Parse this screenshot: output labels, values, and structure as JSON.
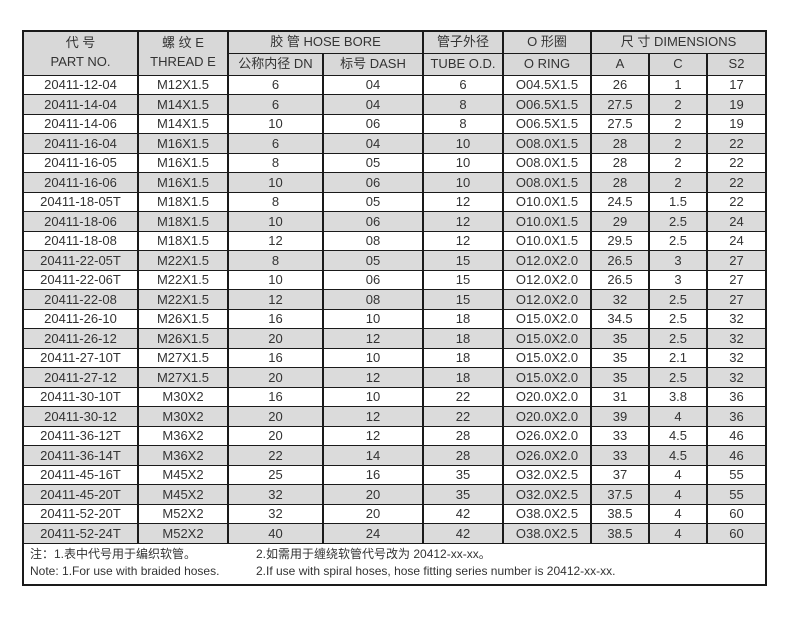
{
  "colors": {
    "header_bg": "#d8d8d8",
    "stripe_bg": "#dbdbdb",
    "border": "#1a1a1a",
    "text": "#333333"
  },
  "table": {
    "header": {
      "part_no_zh": "代 号",
      "part_no_en": "PART NO.",
      "thread_zh": "螺 纹 E",
      "thread_en": "THREAD E",
      "hose_bore": "胶 管 HOSE BORE",
      "dn": "公称内径 DN",
      "dash": "标号 DASH",
      "tube_od_zh": "管子外径",
      "tube_od_en": "TUBE O.D.",
      "o_ring_zh": "O 形圈",
      "o_ring_en": "O RING",
      "dimensions": "尺 寸 DIMENSIONS",
      "dim_a": "A",
      "dim_c": "C",
      "dim_s2": "S2"
    },
    "rows": [
      [
        "20411-12-04",
        "M12X1.5",
        "6",
        "04",
        "6",
        "O04.5X1.5",
        "26",
        "1",
        "17"
      ],
      [
        "20411-14-04",
        "M14X1.5",
        "6",
        "04",
        "8",
        "O06.5X1.5",
        "27.5",
        "2",
        "19"
      ],
      [
        "20411-14-06",
        "M14X1.5",
        "10",
        "06",
        "8",
        "O06.5X1.5",
        "27.5",
        "2",
        "19"
      ],
      [
        "20411-16-04",
        "M16X1.5",
        "6",
        "04",
        "10",
        "O08.0X1.5",
        "28",
        "2",
        "22"
      ],
      [
        "20411-16-05",
        "M16X1.5",
        "8",
        "05",
        "10",
        "O08.0X1.5",
        "28",
        "2",
        "22"
      ],
      [
        "20411-16-06",
        "M16X1.5",
        "10",
        "06",
        "10",
        "O08.0X1.5",
        "28",
        "2",
        "22"
      ],
      [
        "20411-18-05T",
        "M18X1.5",
        "8",
        "05",
        "12",
        "O10.0X1.5",
        "24.5",
        "1.5",
        "22"
      ],
      [
        "20411-18-06",
        "M18X1.5",
        "10",
        "06",
        "12",
        "O10.0X1.5",
        "29",
        "2.5",
        "24"
      ],
      [
        "20411-18-08",
        "M18X1.5",
        "12",
        "08",
        "12",
        "O10.0X1.5",
        "29.5",
        "2.5",
        "24"
      ],
      [
        "20411-22-05T",
        "M22X1.5",
        "8",
        "05",
        "15",
        "O12.0X2.0",
        "26.5",
        "3",
        "27"
      ],
      [
        "20411-22-06T",
        "M22X1.5",
        "10",
        "06",
        "15",
        "O12.0X2.0",
        "26.5",
        "3",
        "27"
      ],
      [
        "20411-22-08",
        "M22X1.5",
        "12",
        "08",
        "15",
        "O12.0X2.0",
        "32",
        "2.5",
        "27"
      ],
      [
        "20411-26-10",
        "M26X1.5",
        "16",
        "10",
        "18",
        "O15.0X2.0",
        "34.5",
        "2.5",
        "32"
      ],
      [
        "20411-26-12",
        "M26X1.5",
        "20",
        "12",
        "18",
        "O15.0X2.0",
        "35",
        "2.5",
        "32"
      ],
      [
        "20411-27-10T",
        "M27X1.5",
        "16",
        "10",
        "18",
        "O15.0X2.0",
        "35",
        "2.1",
        "32"
      ],
      [
        "20411-27-12",
        "M27X1.5",
        "20",
        "12",
        "18",
        "O15.0X2.0",
        "35",
        "2.5",
        "32"
      ],
      [
        "20411-30-10T",
        "M30X2",
        "16",
        "10",
        "22",
        "O20.0X2.0",
        "31",
        "3.8",
        "36"
      ],
      [
        "20411-30-12",
        "M30X2",
        "20",
        "12",
        "22",
        "O20.0X2.0",
        "39",
        "4",
        "36"
      ],
      [
        "20411-36-12T",
        "M36X2",
        "20",
        "12",
        "28",
        "O26.0X2.0",
        "33",
        "4.5",
        "46"
      ],
      [
        "20411-36-14T",
        "M36X2",
        "22",
        "14",
        "28",
        "O26.0X2.0",
        "33",
        "4.5",
        "46"
      ],
      [
        "20411-45-16T",
        "M45X2",
        "25",
        "16",
        "35",
        "O32.0X2.5",
        "37",
        "4",
        "55"
      ],
      [
        "20411-45-20T",
        "M45X2",
        "32",
        "20",
        "35",
        "O32.0X2.5",
        "37.5",
        "4",
        "55"
      ],
      [
        "20411-52-20T",
        "M52X2",
        "32",
        "20",
        "42",
        "O38.0X2.5",
        "38.5",
        "4",
        "60"
      ],
      [
        "20411-52-24T",
        "M52X2",
        "40",
        "24",
        "42",
        "O38.0X2.5",
        "38.5",
        "4",
        "60"
      ]
    ]
  },
  "notes": {
    "zh_1": "注：1.表中代号用于编织软管。",
    "zh_2": "2.如需用于缠绕软管代号改为 20412-xx-xx。",
    "en_1": "Note: 1.For use with braided hoses.",
    "en_2": "2.If use with spiral hoses, hose fitting series number is 20412-xx-xx."
  }
}
